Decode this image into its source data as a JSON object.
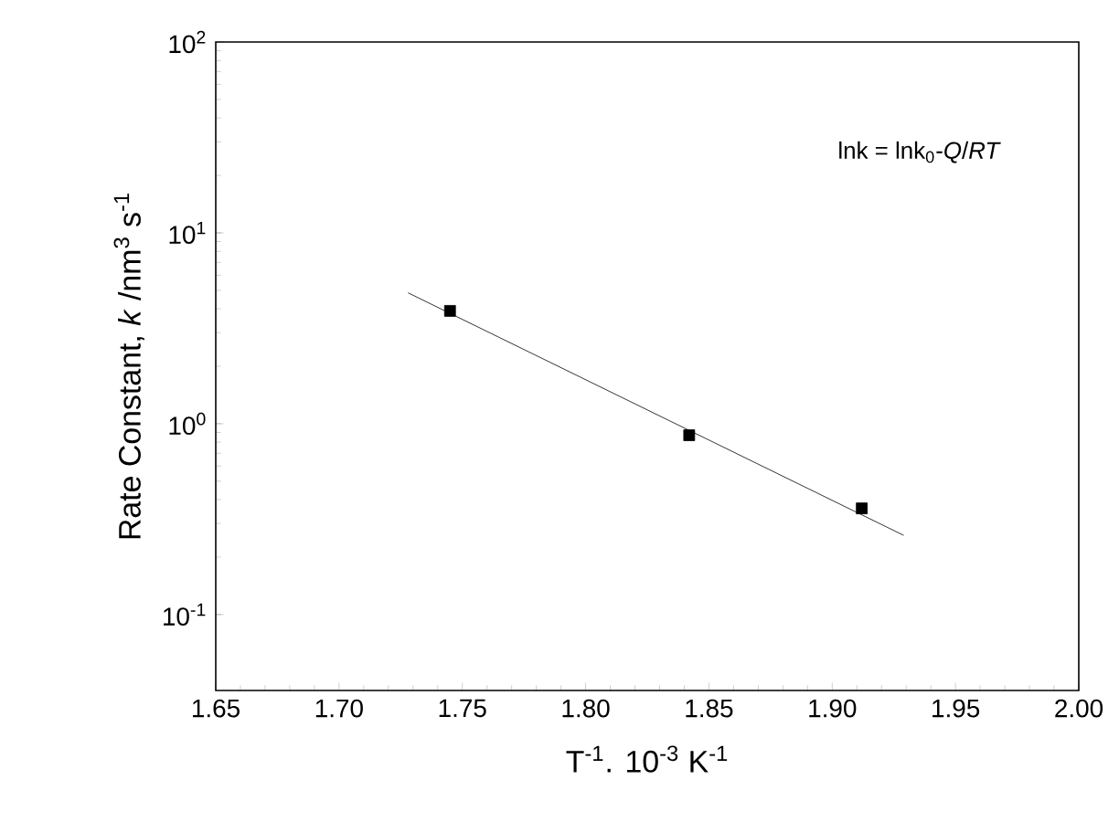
{
  "chart_data": {
    "type": "scatter",
    "xlabel": "T$^{-1}$. 10$^{-3}$ K$^{-1}$",
    "ylabel": "Rate Constant, *k* /nm$^{3}$ s$^{-1}$",
    "annotations": [
      "lnk = lnk$_{0}$-*Q*/*RT*"
    ],
    "log": "y",
    "xlim": [
      1.65,
      2.0
    ],
    "ylim": [
      0.04,
      100
    ],
    "xticks": [
      1.65,
      {
        "value": 1.7,
        "label": "1.70"
      },
      1.75,
      {
        "value": 1.8,
        "label": "1.80"
      },
      1.85,
      {
        "value": 1.9,
        "label": "1.90"
      },
      1.95,
      {
        "value": 2.0,
        "label": "2.00"
      }
    ],
    "yticks": [
      {
        "value": 0.1,
        "label": "10$^{-1}$"
      },
      {
        "value": 1,
        "label": "10$^{0}$"
      },
      {
        "value": 10,
        "label": "10$^{1}$"
      },
      {
        "value": 100,
        "label": "10$^{2}$"
      }
    ],
    "series": [
      {
        "color": "#000000",
        "marker": "square",
        "x": [
          1.745,
          1.842,
          1.912
        ],
        "values": [
          3.9,
          0.87,
          0.36
        ]
      },
      {
        "type": "line",
        "color": "#000000",
        "marker": "none",
        "line_style": "solid",
        "x": [
          1.728,
          1.929
        ],
        "values": [
          4.85,
          0.26
        ]
      }
    ]
  }
}
